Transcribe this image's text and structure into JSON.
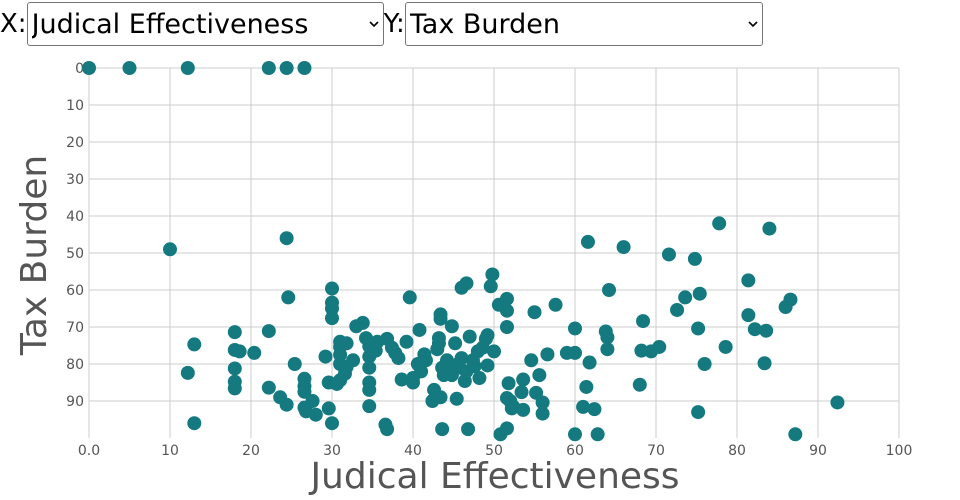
{
  "controls": {
    "x_label": "X:",
    "x_selected": "Judical Effectiveness",
    "y_label": "Y:",
    "y_selected": "Tax Burden"
  },
  "chart_data": {
    "type": "scatter",
    "xlabel": "Judical Effectiveness",
    "ylabel": "Tax Burden",
    "xlim": [
      0,
      100
    ],
    "ylim": [
      0,
      100
    ],
    "y_inverted": true,
    "x_ticks": [
      "0.0",
      "10",
      "20",
      "30",
      "40",
      "50",
      "60",
      "70",
      "80",
      "90",
      "100"
    ],
    "y_ticks": [
      "0",
      "10",
      "20",
      "30",
      "40",
      "50",
      "60",
      "70",
      "80",
      "90"
    ],
    "grid": true,
    "point_color": "#147a80",
    "points": [
      [
        0,
        0
      ],
      [
        5,
        0
      ],
      [
        12.2,
        0
      ],
      [
        22.2,
        0
      ],
      [
        24.4,
        0
      ],
      [
        26.6,
        0
      ],
      [
        10,
        49
      ],
      [
        24.4,
        46
      ],
      [
        24.6,
        62
      ],
      [
        13,
        74.7
      ],
      [
        12.2,
        82.4
      ],
      [
        13,
        96
      ],
      [
        18,
        71.4
      ],
      [
        18,
        76.2
      ],
      [
        18.6,
        76.6
      ],
      [
        20.4,
        77
      ],
      [
        18,
        81.2
      ],
      [
        18,
        84.8
      ],
      [
        18,
        86.6
      ],
      [
        22.2,
        71.1
      ],
      [
        22.2,
        86.4
      ],
      [
        23.6,
        89
      ],
      [
        24.4,
        91
      ],
      [
        25.4,
        80
      ],
      [
        26.6,
        84
      ],
      [
        26.6,
        86
      ],
      [
        26.6,
        87.5
      ],
      [
        26.6,
        91.8
      ],
      [
        26.8,
        92.8
      ],
      [
        27.6,
        90
      ],
      [
        28,
        93.7
      ],
      [
        29.2,
        78
      ],
      [
        29.6,
        85
      ],
      [
        29.6,
        92
      ],
      [
        30,
        96
      ],
      [
        30,
        59.6
      ],
      [
        30,
        63.4
      ],
      [
        30,
        65
      ],
      [
        30,
        67.6
      ],
      [
        30.6,
        85.4
      ],
      [
        31,
        74
      ],
      [
        31,
        75.4
      ],
      [
        31,
        77.5
      ],
      [
        31,
        80
      ],
      [
        31,
        84.4
      ],
      [
        31.8,
        80.8
      ],
      [
        31.6,
        82.6
      ],
      [
        31.8,
        74.4
      ],
      [
        32.6,
        79
      ],
      [
        33,
        69.8
      ],
      [
        33.8,
        68.9
      ],
      [
        34.2,
        73
      ],
      [
        34.6,
        75.2
      ],
      [
        34.6,
        78
      ],
      [
        34.6,
        81
      ],
      [
        34.6,
        85
      ],
      [
        34.6,
        87
      ],
      [
        34.6,
        91.4
      ],
      [
        35.6,
        74
      ],
      [
        35.4,
        76.4
      ],
      [
        36.6,
        96.4
      ],
      [
        36.8,
        97.6
      ],
      [
        36.8,
        73.2
      ],
      [
        37.4,
        75.6
      ],
      [
        37.8,
        77
      ],
      [
        38.2,
        78.4
      ],
      [
        38.6,
        84.2
      ],
      [
        39.2,
        74
      ],
      [
        39.6,
        62
      ],
      [
        40,
        83.8
      ],
      [
        40,
        85
      ],
      [
        40.6,
        80
      ],
      [
        40.8,
        70.8
      ],
      [
        41,
        82
      ],
      [
        41.4,
        77.4
      ],
      [
        41.6,
        79
      ],
      [
        42.4,
        90
      ],
      [
        42.6,
        87
      ],
      [
        43.2,
        73
      ],
      [
        43.2,
        74.4
      ],
      [
        43,
        76
      ],
      [
        43.4,
        66.6
      ],
      [
        43.4,
        67.8
      ],
      [
        43.4,
        89
      ],
      [
        43.6,
        81
      ],
      [
        43.6,
        97.6
      ],
      [
        43.8,
        83
      ],
      [
        44.2,
        79
      ],
      [
        44.4,
        80
      ],
      [
        44.8,
        83
      ],
      [
        44.8,
        69.8
      ],
      [
        45.2,
        74.4
      ],
      [
        45.4,
        89.4
      ],
      [
        45.6,
        80
      ],
      [
        45.6,
        81
      ],
      [
        46,
        59.4
      ],
      [
        46,
        78.4
      ],
      [
        46.6,
        58.2
      ],
      [
        46.4,
        84.6
      ],
      [
        46.6,
        82
      ],
      [
        46.8,
        97.6
      ],
      [
        47,
        72.6
      ],
      [
        47.4,
        79
      ],
      [
        47.6,
        80.6
      ],
      [
        48,
        76.6
      ],
      [
        48.2,
        83.8
      ],
      [
        48.6,
        75.6
      ],
      [
        49,
        73.2
      ],
      [
        49.2,
        80.4
      ],
      [
        49.2,
        72.2
      ],
      [
        49.6,
        59
      ],
      [
        49.8,
        55.8
      ],
      [
        50,
        76.6
      ],
      [
        50.6,
        64
      ],
      [
        50.8,
        99
      ],
      [
        51.6,
        62.4
      ],
      [
        51.6,
        65.6
      ],
      [
        51.6,
        70
      ],
      [
        51.6,
        89.2
      ],
      [
        51.6,
        97.4
      ],
      [
        51.8,
        85.2
      ],
      [
        52,
        90
      ],
      [
        52.2,
        92
      ],
      [
        52.4,
        91.6
      ],
      [
        53.4,
        87.6
      ],
      [
        53.6,
        84.2
      ],
      [
        53.6,
        92.4
      ],
      [
        54.6,
        79
      ],
      [
        55,
        66
      ],
      [
        55.2,
        87.8
      ],
      [
        55.6,
        83
      ],
      [
        56,
        90.4
      ],
      [
        56,
        93.4
      ],
      [
        56.6,
        77.4
      ],
      [
        57.6,
        64
      ],
      [
        59,
        77
      ],
      [
        60,
        70.4
      ],
      [
        60,
        77
      ],
      [
        60,
        99
      ],
      [
        61,
        91.6
      ],
      [
        61.4,
        86.2
      ],
      [
        61.6,
        47
      ],
      [
        61.8,
        79.6
      ],
      [
        62.4,
        92.2
      ],
      [
        62.8,
        99
      ],
      [
        63.8,
        71.2
      ],
      [
        64,
        72.8
      ],
      [
        64,
        76
      ],
      [
        64.2,
        60
      ],
      [
        66,
        48.4
      ],
      [
        68,
        85.6
      ],
      [
        68.2,
        76.4
      ],
      [
        68.4,
        68.4
      ],
      [
        69.4,
        76.6
      ],
      [
        70.4,
        75.4
      ],
      [
        71.6,
        50.4
      ],
      [
        72.6,
        65.4
      ],
      [
        73.6,
        62
      ],
      [
        74.8,
        51.6
      ],
      [
        75.2,
        70.4
      ],
      [
        75.2,
        93
      ],
      [
        75.4,
        61
      ],
      [
        76,
        80
      ],
      [
        77.8,
        42
      ],
      [
        78.6,
        75.4
      ],
      [
        81.4,
        57.4
      ],
      [
        81.4,
        66.8
      ],
      [
        82.2,
        70.6
      ],
      [
        83.4,
        79.8
      ],
      [
        83.6,
        71
      ],
      [
        84,
        43.4
      ],
      [
        86,
        64.6
      ],
      [
        86.6,
        62.6
      ],
      [
        87.2,
        99
      ],
      [
        92.4,
        90.4
      ]
    ]
  }
}
